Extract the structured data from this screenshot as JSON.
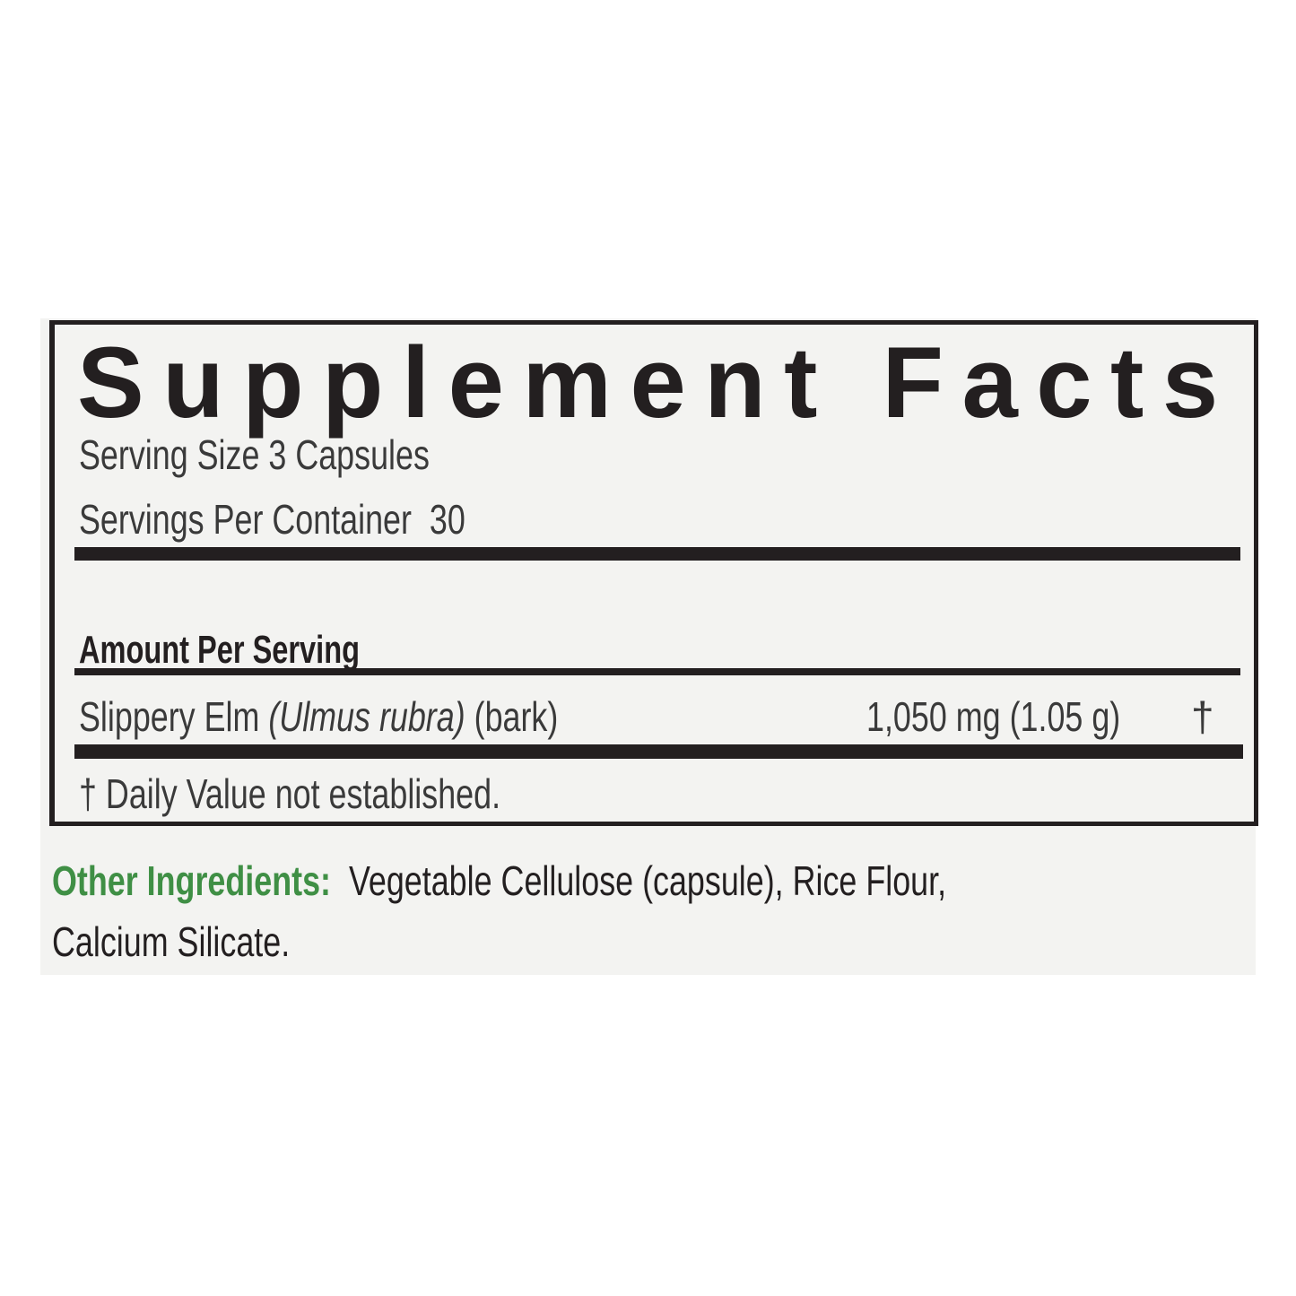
{
  "panel": {
    "title": "Supplement Facts",
    "serving_size": "Serving Size 3 Capsules",
    "servings_per_container": "Servings Per Container  30",
    "amount_header": "Amount Per Serving",
    "ingredients": [
      {
        "name": "Slippery Elm ",
        "latin": "(Ulmus rubra)",
        "part": " (bark)",
        "amount": "1,050 mg (1.05 g)",
        "dv": "†"
      }
    ],
    "footnote": "† Daily Value not established."
  },
  "other_ingredients": {
    "label": "Other Ingredients:",
    "line1": "Vegetable Cellulose (capsule), Rice Flour,",
    "line2": "Calcium Silicate."
  },
  "colors": {
    "text": "#231f20",
    "accent_green": "#3f8f45",
    "background": "#f3f3f1"
  }
}
